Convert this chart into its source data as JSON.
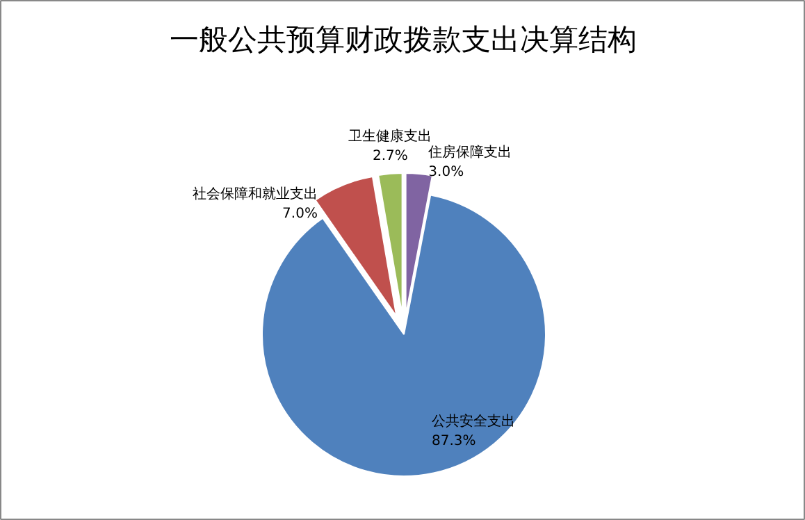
{
  "chart_data": {
    "type": "pie",
    "title": "一般公共预算财政拨款支出决算结构",
    "categories": [
      "住房保障支出",
      "公共安全支出",
      "社会保障和就业支出",
      "卫生健康支出"
    ],
    "values": [
      3.0,
      87.3,
      7.0,
      2.7
    ],
    "colors": [
      "#8064a2",
      "#4f81bd",
      "#c0504d",
      "#9bbb59"
    ],
    "value_labels": [
      "3.0%",
      "87.3%",
      "7.0%",
      "2.7%"
    ]
  }
}
